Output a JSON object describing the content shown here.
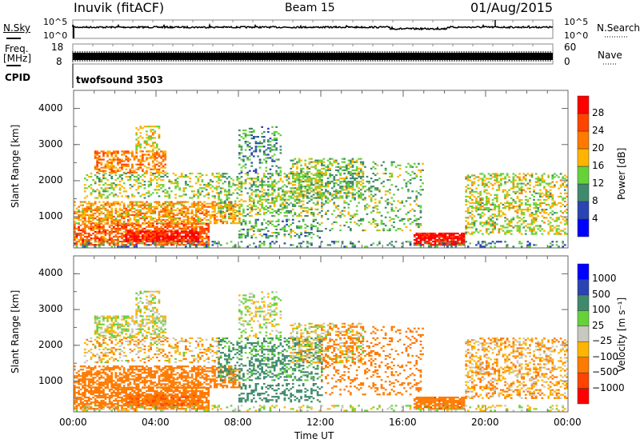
{
  "header": {
    "station": "Inuvik (fitACF)",
    "beam": "Beam 15",
    "date": "01/Aug/2015"
  },
  "noise_panel": {
    "left_label": "N.Sky",
    "right_label": "N.Search",
    "left_ticks": [
      "10^5",
      "10^0"
    ],
    "right_ticks": [
      "10^5",
      "10^0"
    ]
  },
  "freq_panel": {
    "left_label": "Freq.",
    "left_unit": "[MHz]",
    "right_label": "Nave",
    "left_ticks": [
      "18",
      "8"
    ],
    "right_ticks": [
      "60",
      "0"
    ]
  },
  "cpid": {
    "label": "CPID",
    "value": "twofsound 3503"
  },
  "chart_data": [
    {
      "type": "heatmap",
      "name": "power",
      "ylabel": "Slant Range [km]",
      "xlabel": "Time UT",
      "xlim": [
        0,
        24
      ],
      "ylim": [
        140,
        4500
      ],
      "yticks": [
        "1000",
        "2000",
        "3000",
        "4000"
      ],
      "xticks": [
        "00:00",
        "04:00",
        "08:00",
        "12:00",
        "16:00",
        "20:00",
        "00:00"
      ],
      "colorbar": {
        "label": "Power [dB]",
        "ticks": [
          "28",
          "24",
          "20",
          "16",
          "12",
          "8",
          "4"
        ],
        "colors": [
          "#0000ff",
          "#2a44b4",
          "#3f8a6c",
          "#66d23a",
          "#ffb400",
          "#ff7a00",
          "#ff4400",
          "#ff0000"
        ]
      }
    },
    {
      "type": "heatmap",
      "name": "velocity",
      "ylabel": "Slant Range [km]",
      "xlabel": "Time UT",
      "xlim": [
        0,
        24
      ],
      "ylim": [
        140,
        4500
      ],
      "yticks": [
        "1000",
        "2000",
        "3000",
        "4000"
      ],
      "xticks": [
        "00:00",
        "04:00",
        "08:00",
        "12:00",
        "16:00",
        "20:00",
        "00:00"
      ],
      "colorbar": {
        "label": "Velocity [m s⁻¹]",
        "ticks": [
          "1000",
          "500",
          "100",
          "25",
          "−25",
          "−100",
          "−500",
          "−1000"
        ],
        "colors": [
          "#ff0000",
          "#ff4400",
          "#ff7a00",
          "#ffb400",
          "#c8c8c0",
          "#66d23a",
          "#3f8a6c",
          "#2a44b4",
          "#0000ff"
        ]
      }
    }
  ],
  "echo_regions": [
    {
      "t": [
        0,
        6.5
      ],
      "r": [
        200,
        800
      ],
      "power": 24,
      "vel": -300,
      "density": 0.7
    },
    {
      "t": [
        2.5,
        6
      ],
      "r": [
        300,
        600
      ],
      "power": 30,
      "vel": -400,
      "density": 0.8
    },
    {
      "t": [
        0,
        8
      ],
      "r": [
        800,
        1400
      ],
      "power": 20,
      "vel": -250,
      "density": 0.6
    },
    {
      "t": [
        1,
        4.5
      ],
      "r": [
        2200,
        2800
      ],
      "power": 22,
      "vel": 0,
      "density": 0.55
    },
    {
      "t": [
        3,
        4.2
      ],
      "r": [
        2800,
        3500
      ],
      "power": 17,
      "vel": 0,
      "density": 0.4
    },
    {
      "t": [
        0.5,
        7
      ],
      "r": [
        1500,
        2200
      ],
      "power": 15,
      "vel": -60,
      "density": 0.35
    },
    {
      "t": [
        7,
        12
      ],
      "r": [
        1000,
        2200
      ],
      "power": 14,
      "vel": 150,
      "density": 0.4
    },
    {
      "t": [
        8,
        10
      ],
      "r": [
        2200,
        3500
      ],
      "power": 10,
      "vel": 0,
      "density": 0.3
    },
    {
      "t": [
        10.5,
        14
      ],
      "r": [
        1500,
        2600
      ],
      "power": 14,
      "vel": -40,
      "density": 0.4
    },
    {
      "t": [
        12,
        17
      ],
      "r": [
        600,
        2500
      ],
      "power": 13,
      "vel": -200,
      "density": 0.2
    },
    {
      "t": [
        8,
        12
      ],
      "r": [
        400,
        900
      ],
      "power": 12,
      "vel": 300,
      "density": 0.3
    },
    {
      "t": [
        16.5,
        19
      ],
      "r": [
        200,
        550
      ],
      "power": 30,
      "vel": -350,
      "density": 0.85
    },
    {
      "t": [
        19,
        24
      ],
      "r": [
        500,
        2200
      ],
      "power": 16,
      "vel": -80,
      "density": 0.4
    },
    {
      "t": [
        0,
        24
      ],
      "r": [
        150,
        300
      ],
      "power": 10,
      "vel": 0,
      "density": 0.25
    }
  ]
}
